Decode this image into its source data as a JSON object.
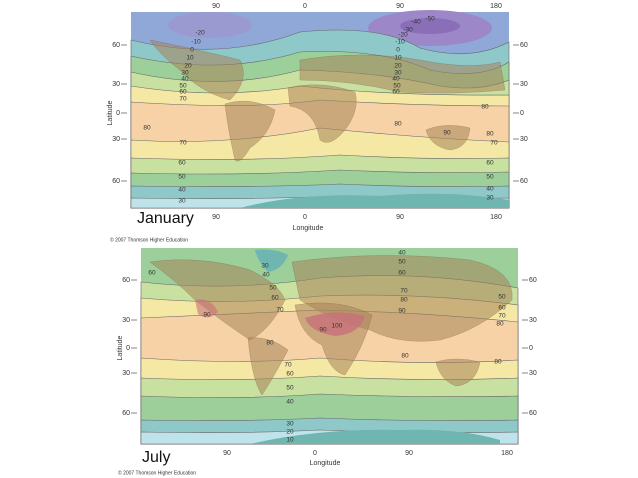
{
  "maps": [
    {
      "caption": "January",
      "x_axis_label": "Longitude",
      "y_axis_label": "Latitude",
      "top_ticks": [
        "90",
        "0",
        "90",
        "180"
      ],
      "bottom_ticks": [
        "90",
        "0",
        "90",
        "180"
      ],
      "left_ticks": [
        "60",
        "30",
        "0",
        "30",
        "60"
      ],
      "right_ticks": [
        "60",
        "30",
        "0",
        "30",
        "60"
      ],
      "isotherm_labels": [
        "-40",
        "-50",
        "-30",
        "-20",
        "-20",
        "-10",
        "-10",
        "0",
        "0",
        "10",
        "10",
        "20",
        "20",
        "30",
        "30",
        "40",
        "40",
        "50",
        "50",
        "60",
        "60",
        "70",
        "80",
        "80",
        "80",
        "90",
        "80",
        "70",
        "70",
        "60",
        "50",
        "40",
        "30",
        "60",
        "50",
        "40",
        "30"
      ],
      "credit": "© 2007 Thomson Higher Education"
    },
    {
      "caption": "July",
      "x_axis_label": "Longitude",
      "y_axis_label": "Latitude",
      "top_ticks": [],
      "bottom_ticks": [
        "90",
        "0",
        "90",
        "180"
      ],
      "left_ticks": [
        "60",
        "30",
        "0",
        "30",
        "60"
      ],
      "right_ticks": [
        "60",
        "30",
        "0",
        "30",
        "60"
      ],
      "isotherm_labels": [
        "30",
        "40",
        "50",
        "60",
        "70",
        "90",
        "80",
        "70",
        "60",
        "50",
        "40",
        "30",
        "20",
        "10",
        "40",
        "50",
        "60",
        "70",
        "80",
        "90",
        "100",
        "90",
        "80",
        "80",
        "50",
        "60",
        "70",
        "80",
        "60"
      ],
      "credit": "© 2007 Thomson Higher Education"
    }
  ]
}
